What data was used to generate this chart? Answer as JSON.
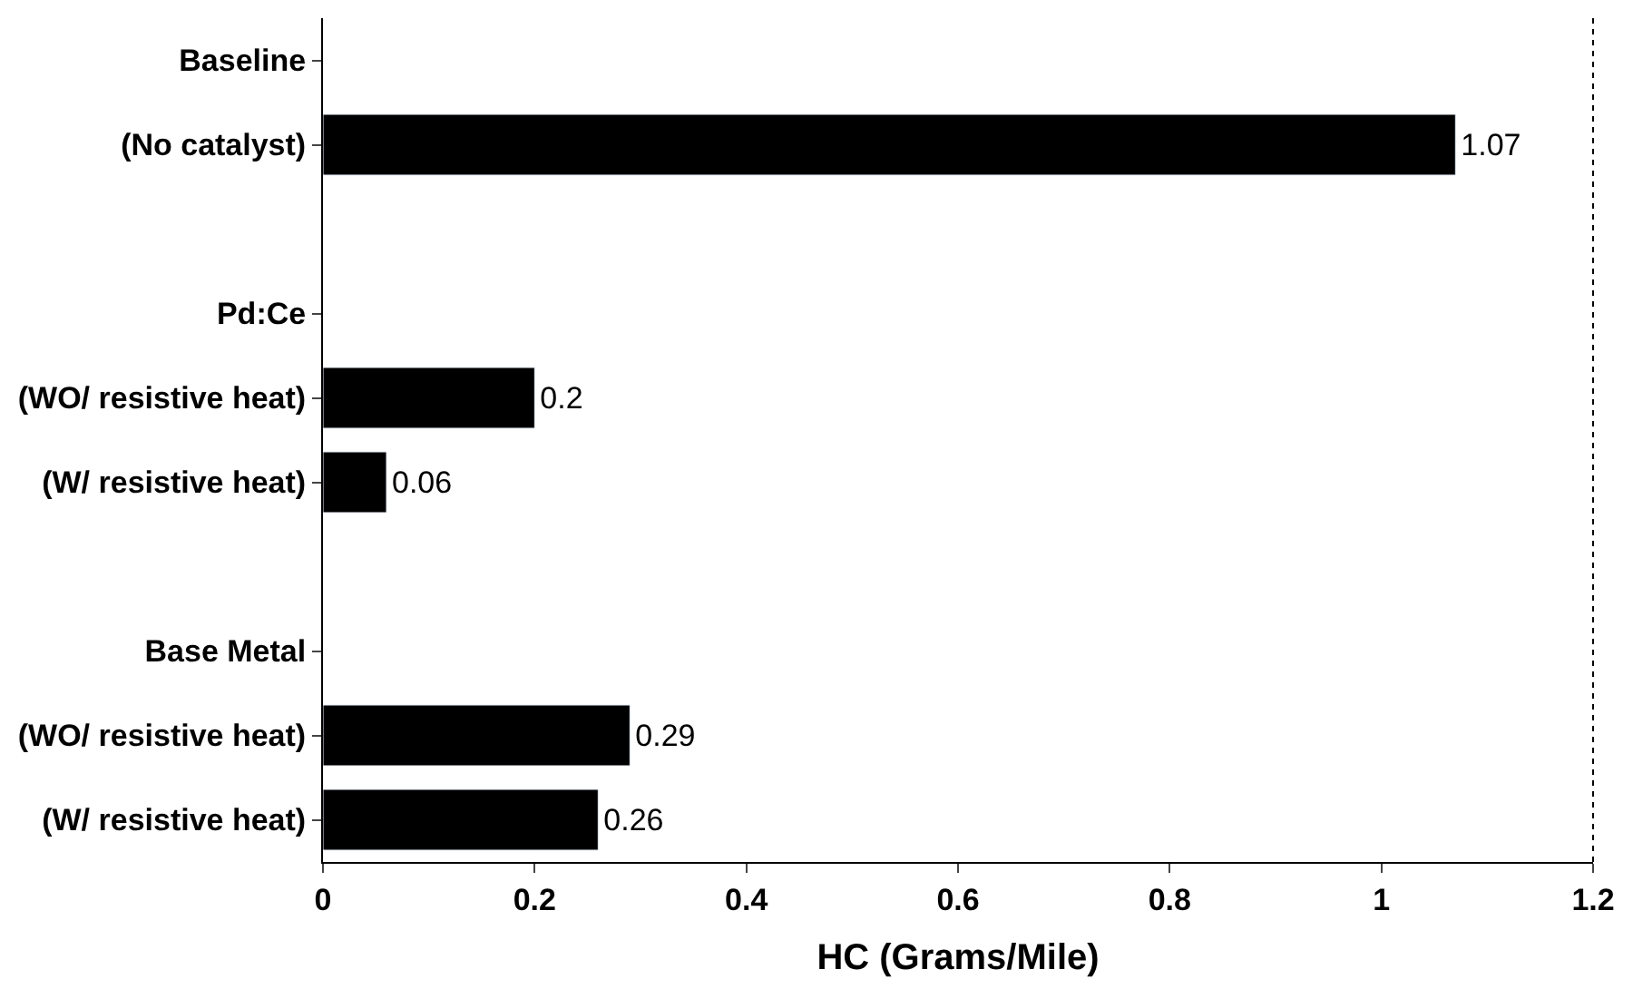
{
  "chart_data": {
    "type": "bar",
    "orientation": "horizontal",
    "xlabel": "HC (Grams/Mile)",
    "categories": [
      "Baseline",
      "(No catalyst)",
      null,
      "Pd:Ce",
      "(WO/ resistive heat)",
      "(W/ resistive heat)",
      null,
      "Base Metal",
      "(WO/ resistive heat)",
      "(W/ resistive heat)"
    ],
    "values": [
      null,
      1.07,
      null,
      null,
      0.2,
      0.06,
      null,
      null,
      0.29,
      0.26
    ],
    "color": "#000000",
    "data_labels": true,
    "xlim": [
      0,
      1.2
    ],
    "xticks": [
      0,
      0.2,
      0.4,
      0.6,
      0.8,
      1,
      1.2
    ]
  }
}
